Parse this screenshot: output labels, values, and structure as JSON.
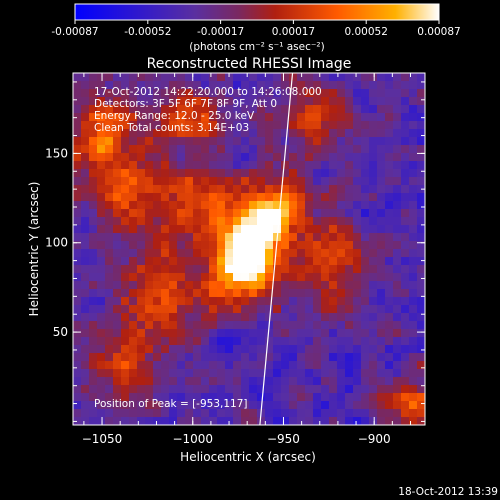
{
  "chart_data": {
    "type": "heatmap",
    "title": "Reconstructed RHESSI Image",
    "xlabel": "Heliocentric X (arcsec)",
    "ylabel": "Heliocentric Y (arcsec)",
    "xlim": [
      -1066,
      -872
    ],
    "ylim": [
      -2,
      195
    ],
    "xticks": [
      -1050,
      -1000,
      -950,
      -900
    ],
    "yticks": [
      50,
      100,
      150
    ],
    "colorbar": {
      "range": [
        -0.00087,
        0.00087
      ],
      "ticks": [
        "-0.00087",
        "-0.00052",
        "-0.00017",
        "0.00017",
        "0.00052",
        "0.00087"
      ],
      "unit_label": "(photons cm⁻² s⁻¹ asec⁻²)",
      "colors": [
        "#0000ff",
        "#5a2fa0",
        "#8a2a20",
        "#e03000",
        "#ff8a00",
        "#ffffff"
      ]
    },
    "info_lines": [
      "17-Oct-2012 14:22:20.000 to 14:26:08.000",
      "Detectors: 3F 5F 6F 7F 8F 9F, Att 0",
      "Energy Range: 12.0 - 25.0 keV",
      "Clean     Total counts: 3.14E+03"
    ],
    "peak_label": "Position of Peak = [-953,117]",
    "peak": [
      -953,
      117
    ],
    "limb_line": [
      [
        -963,
        -2
      ],
      [
        -945,
        195
      ]
    ],
    "features": [
      {
        "x": -968,
        "y": 97,
        "intensity": 1.0,
        "sigma": 7
      },
      {
        "x": -955,
        "y": 117,
        "intensity": 0.95,
        "sigma": 8
      },
      {
        "x": -975,
        "y": 80,
        "intensity": 0.7,
        "sigma": 9
      },
      {
        "x": -990,
        "y": 120,
        "intensity": 0.55,
        "sigma": 10
      },
      {
        "x": -1030,
        "y": 125,
        "intensity": 0.5,
        "sigma": 12
      },
      {
        "x": -1020,
        "y": 70,
        "intensity": 0.55,
        "sigma": 12
      },
      {
        "x": -1050,
        "y": 160,
        "intensity": 0.6,
        "sigma": 11
      },
      {
        "x": -925,
        "y": 90,
        "intensity": 0.5,
        "sigma": 12
      },
      {
        "x": -935,
        "y": 170,
        "intensity": 0.45,
        "sigma": 10
      },
      {
        "x": -1040,
        "y": 30,
        "intensity": 0.45,
        "sigma": 10
      },
      {
        "x": -880,
        "y": 10,
        "intensity": 0.6,
        "sigma": 7
      },
      {
        "x": -1000,
        "y": 170,
        "intensity": 0.5,
        "sigma": 9
      }
    ]
  },
  "footer_timestamp": "18-Oct-2012 13:39"
}
